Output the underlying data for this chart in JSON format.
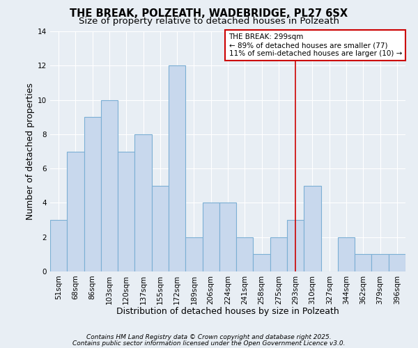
{
  "title": "THE BREAK, POLZEATH, WADEBRIDGE, PL27 6SX",
  "subtitle": "Size of property relative to detached houses in Polzeath",
  "xlabel": "Distribution of detached houses by size in Polzeath",
  "ylabel": "Number of detached properties",
  "bar_labels": [
    "51sqm",
    "68sqm",
    "86sqm",
    "103sqm",
    "120sqm",
    "137sqm",
    "155sqm",
    "172sqm",
    "189sqm",
    "206sqm",
    "224sqm",
    "241sqm",
    "258sqm",
    "275sqm",
    "293sqm",
    "310sqm",
    "327sqm",
    "344sqm",
    "362sqm",
    "379sqm",
    "396sqm"
  ],
  "bar_values": [
    3,
    7,
    9,
    10,
    7,
    8,
    5,
    12,
    2,
    4,
    4,
    2,
    1,
    2,
    3,
    5,
    0,
    2,
    1,
    1,
    1
  ],
  "bar_color": "#c8d8ed",
  "bar_edge_color": "#7bafd4",
  "ylim": [
    0,
    14
  ],
  "yticks": [
    0,
    2,
    4,
    6,
    8,
    10,
    12,
    14
  ],
  "vline_x": 14,
  "vline_color": "#cc0000",
  "annotation_title": "THE BREAK: 299sqm",
  "annotation_line1": "← 89% of detached houses are smaller (77)",
  "annotation_line2": "11% of semi-detached houses are larger (10) →",
  "annotation_box_edge_color": "#cc0000",
  "footer_line1": "Contains HM Land Registry data © Crown copyright and database right 2025.",
  "footer_line2": "Contains public sector information licensed under the Open Government Licence v3.0.",
  "background_color": "#e8eef4",
  "plot_bg_color": "#e8eef4",
  "grid_color": "#ffffff",
  "title_fontsize": 10.5,
  "subtitle_fontsize": 9.5,
  "axis_label_fontsize": 9,
  "tick_fontsize": 7.5,
  "annotation_fontsize": 7.5,
  "footer_fontsize": 6.5
}
